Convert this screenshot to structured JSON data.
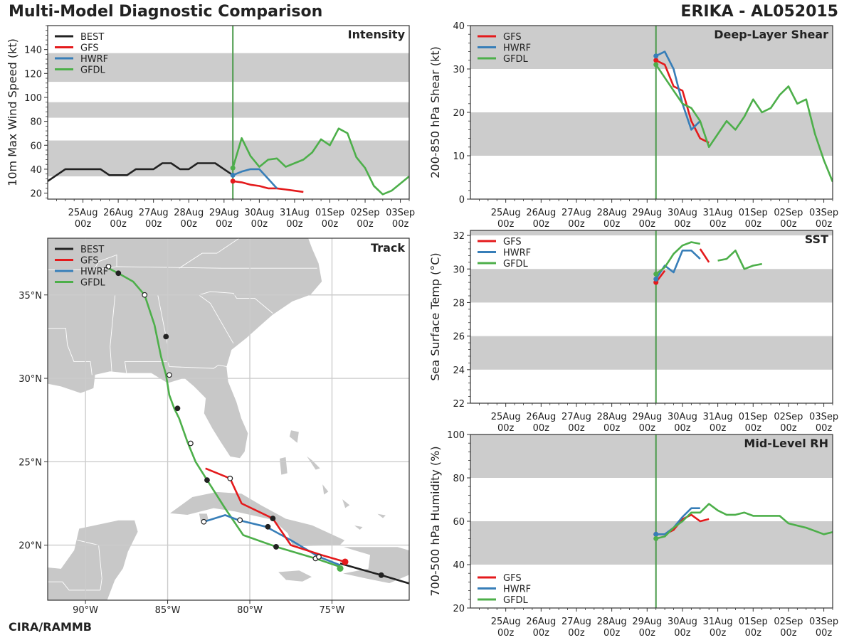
{
  "header": {
    "title": "Multi-Model Diagnostic Comparison",
    "storm": "ERIKA - AL052015",
    "credit": "CIRA/RAMMB"
  },
  "colors": {
    "BEST": "#222222",
    "GFS": "#e41a1c",
    "HWRF": "#377eb8",
    "GFDL": "#4daf4a",
    "band": "#cccccc",
    "init_line": "#4a9a4a",
    "land": "#c8c8c8",
    "grid": "#cccccc"
  },
  "time_axis": {
    "ticks": [
      {
        "day": 1,
        "top": "25Aug",
        "bottom": "00z"
      },
      {
        "day": 2,
        "top": "26Aug",
        "bottom": "00z"
      },
      {
        "day": 3,
        "top": "27Aug",
        "bottom": "00z"
      },
      {
        "day": 4,
        "top": "28Aug",
        "bottom": "00z"
      },
      {
        "day": 5,
        "top": "29Aug",
        "bottom": "00z"
      },
      {
        "day": 6,
        "top": "30Aug",
        "bottom": "00z"
      },
      {
        "day": 7,
        "top": "31Aug",
        "bottom": "00z"
      },
      {
        "day": 8,
        "top": "01Sep",
        "bottom": "00z"
      },
      {
        "day": 9,
        "top": "02Sep",
        "bottom": "00z"
      },
      {
        "day": 10,
        "top": "03Sep",
        "bottom": "00z"
      }
    ],
    "range": [
      0,
      10.25
    ],
    "init_day": 5.25
  },
  "chart_data": [
    {
      "id": "intensity",
      "type": "line",
      "title": "Intensity",
      "ylabel": "10m Max Wind Speed (kt)",
      "ylim": [
        15,
        160
      ],
      "yticks": [
        20,
        40,
        60,
        80,
        100,
        120,
        140
      ],
      "bands": [
        [
          34,
          64
        ],
        [
          83,
          96
        ],
        [
          113,
          137
        ]
      ],
      "legend": {
        "position": "top-left",
        "entries": [
          "BEST",
          "GFS",
          "HWRF",
          "GFDL"
        ]
      },
      "series": [
        {
          "name": "BEST",
          "x": [
            0,
            0.5,
            0.75,
            1.0,
            1.25,
            1.5,
            1.75,
            2.0,
            2.25,
            2.5,
            2.75,
            3.0,
            3.25,
            3.5,
            3.75,
            4.0,
            4.25,
            4.5,
            4.75,
            5.0,
            5.25
          ],
          "y": [
            30,
            40,
            40,
            40,
            40,
            40,
            35,
            35,
            35,
            40,
            40,
            40,
            45,
            45,
            40,
            40,
            45,
            45,
            45,
            40,
            35
          ]
        },
        {
          "name": "GFS",
          "x": [
            5.25,
            5.5,
            5.75,
            6.0,
            6.25,
            6.5,
            6.75,
            7.0,
            7.25
          ],
          "y": [
            30,
            29,
            27,
            26,
            24,
            24,
            23,
            22,
            21
          ]
        },
        {
          "name": "HWRF",
          "x": [
            5.25,
            5.5,
            5.75,
            6.0,
            6.25,
            6.5
          ],
          "y": [
            35,
            38,
            40,
            40,
            32,
            24
          ]
        },
        {
          "name": "GFDL",
          "x": [
            5.25,
            5.5,
            5.75,
            6.0,
            6.25,
            6.5,
            6.75,
            7.0,
            7.25,
            7.5,
            7.75,
            8.0,
            8.25,
            8.5,
            8.75,
            9.0,
            9.25,
            9.5,
            9.75,
            10.0,
            10.25
          ],
          "y": [
            41,
            66,
            51,
            42,
            48,
            49,
            42,
            45,
            48,
            54,
            65,
            60,
            74,
            70,
            50,
            41,
            26,
            19,
            22,
            28,
            34
          ]
        }
      ]
    },
    {
      "id": "shear",
      "type": "line",
      "title": "Deep-Layer Shear",
      "ylabel": "200-850 hPa Shear (kt)",
      "ylim": [
        0,
        40
      ],
      "yticks": [
        0,
        10,
        20,
        30,
        40
      ],
      "bands": [
        [
          10,
          20
        ],
        [
          30,
          40
        ]
      ],
      "legend": {
        "position": "top-left",
        "entries": [
          "GFS",
          "HWRF",
          "GFDL"
        ]
      },
      "series": [
        {
          "name": "GFS",
          "x": [
            5.25,
            5.5,
            5.75,
            6.0,
            6.25,
            6.5,
            6.75
          ],
          "y": [
            32,
            31,
            26,
            25,
            18,
            14,
            13
          ]
        },
        {
          "name": "HWRF",
          "x": [
            5.25,
            5.5,
            5.75,
            6.0,
            6.25,
            6.5
          ],
          "y": [
            33,
            34,
            30,
            22,
            16,
            18
          ]
        },
        {
          "name": "GFDL",
          "x": [
            5.25,
            5.5,
            5.75,
            6.0,
            6.25,
            6.5,
            6.75,
            7.0,
            7.25,
            7.5,
            7.75,
            8.0,
            8.25,
            8.5,
            8.75,
            9.0,
            9.25,
            9.5,
            9.75,
            10.0,
            10.25
          ],
          "y": [
            31,
            28,
            25,
            22,
            21,
            18,
            12,
            15,
            18,
            16,
            19,
            23,
            20,
            21,
            24,
            26,
            22,
            23,
            15,
            9,
            4
          ]
        }
      ]
    },
    {
      "id": "sst",
      "type": "line",
      "title": "SST",
      "ylabel": "Sea Surface Temp (°C)",
      "ylim": [
        22,
        32.3
      ],
      "yticks": [
        22,
        24,
        26,
        28,
        30,
        32
      ],
      "bands": [
        [
          24,
          26
        ],
        [
          28,
          30
        ],
        [
          32,
          33
        ]
      ],
      "legend": {
        "position": "top-left",
        "entries": [
          "GFS",
          "HWRF",
          "GFDL"
        ]
      },
      "series": [
        {
          "name": "GFS",
          "segments": [
            {
              "x": [
                5.25,
                5.5
              ],
              "y": [
                29.2,
                29.9
              ]
            },
            {
              "x": [
                6.5,
                6.75
              ],
              "y": [
                31.2,
                30.4
              ]
            }
          ]
        },
        {
          "name": "HWRF",
          "segments": [
            {
              "x": [
                5.25,
                5.5,
                5.75,
                6.0,
                6.25,
                6.5
              ],
              "y": [
                29.4,
                30.2,
                29.8,
                31.1,
                31.1,
                30.6
              ]
            }
          ]
        },
        {
          "name": "GFDL",
          "segments": [
            {
              "x": [
                5.25,
                5.5,
                5.75,
                6.0,
                6.25,
                6.5
              ],
              "y": [
                29.7,
                30.1,
                30.9,
                31.4,
                31.6,
                31.5
              ]
            },
            {
              "x": [
                7.0,
                7.25,
                7.5,
                7.75,
                8.0,
                8.25
              ],
              "y": [
                30.5,
                30.6,
                31.1,
                30.0,
                30.2,
                30.3
              ]
            }
          ]
        }
      ]
    },
    {
      "id": "rh",
      "type": "line",
      "title": "Mid-Level RH",
      "ylabel": "700-500 hPa Humidity (%)",
      "ylim": [
        20,
        100
      ],
      "yticks": [
        20,
        40,
        60,
        80,
        100
      ],
      "bands": [
        [
          40,
          60
        ],
        [
          80,
          100
        ]
      ],
      "legend": {
        "position": "bottom-left",
        "entries": [
          "GFS",
          "HWRF",
          "GFDL"
        ]
      },
      "series": [
        {
          "name": "GFS",
          "x": [
            5.25,
            5.5,
            5.75,
            6.0,
            6.25,
            6.5,
            6.75
          ],
          "y": [
            54,
            54,
            56,
            61,
            63,
            60,
            61
          ]
        },
        {
          "name": "HWRF",
          "x": [
            5.25,
            5.5,
            5.75,
            6.0,
            6.25,
            6.5
          ],
          "y": [
            54,
            54,
            57,
            62,
            66,
            66
          ]
        },
        {
          "name": "GFDL",
          "x": [
            5.25,
            5.5,
            5.75,
            6.0,
            6.25,
            6.5,
            6.75,
            7.0,
            7.25,
            7.5,
            7.75,
            8.0,
            8.25,
            8.5,
            8.75,
            9.0,
            9.25,
            9.5,
            9.75,
            10.0,
            10.25
          ],
          "y": [
            52,
            53,
            57,
            60,
            64,
            64,
            68,
            65,
            63,
            63,
            64,
            62.5,
            62.5,
            62.5,
            62.5,
            59,
            58,
            57,
            55.5,
            54,
            55
          ]
        }
      ]
    },
    {
      "id": "track",
      "type": "scatter",
      "title": "Track",
      "xlim": [
        -92.3,
        -70.3
      ],
      "ylim": [
        16.7,
        38.4
      ],
      "xticks": [
        {
          "v": -90,
          "label": "90°W"
        },
        {
          "v": -85,
          "label": "85°W"
        },
        {
          "v": -80,
          "label": "80°W"
        },
        {
          "v": -75,
          "label": "75°W"
        }
      ],
      "yticks": [
        {
          "v": 20,
          "label": "20°N"
        },
        {
          "v": 25,
          "label": "25°N"
        },
        {
          "v": 30,
          "label": "30°N"
        },
        {
          "v": 35,
          "label": "35°N"
        }
      ],
      "legend": {
        "position": "top-left",
        "entries": [
          "BEST",
          "GFS",
          "HWRF",
          "GFDL"
        ]
      },
      "series": [
        {
          "name": "BEST",
          "lon": [
            -70.3,
            -72.0,
            -74.5
          ],
          "lat": [
            17.7,
            18.2,
            18.9
          ],
          "markers": [
            {
              "lon": -72.0,
              "lat": 18.2,
              "fill": "dark"
            }
          ]
        },
        {
          "name": "GFS",
          "lon": [
            -74.2,
            -75.6,
            -77.5,
            -78.6,
            -80.5,
            -81.2,
            -82.7
          ],
          "lat": [
            19.0,
            19.4,
            20.0,
            21.6,
            22.5,
            24.0,
            24.6
          ],
          "markers": [
            {
              "lon": -74.2,
              "lat": 19.0,
              "fill": "color"
            },
            {
              "lon": -78.6,
              "lat": 21.6,
              "fill": "dark"
            },
            {
              "lon": -81.2,
              "lat": 24.0,
              "fill": "white"
            }
          ]
        },
        {
          "name": "HWRF",
          "lon": [
            -74.5,
            -75.8,
            -77.5,
            -79.0,
            -80.7,
            -81.5,
            -82.8
          ],
          "lat": [
            18.8,
            19.3,
            20.3,
            21.1,
            21.5,
            21.8,
            21.4
          ],
          "markers": [
            {
              "lon": -75.8,
              "lat": 19.3,
              "fill": "white"
            },
            {
              "lon": -78.9,
              "lat": 21.1,
              "fill": "dark"
            },
            {
              "lon": -80.6,
              "lat": 21.5,
              "fill": "white"
            },
            {
              "lon": -82.8,
              "lat": 21.4,
              "fill": "white"
            }
          ]
        },
        {
          "name": "GFDL",
          "lon": [
            -74.5,
            -76.0,
            -78.4,
            -80.4,
            -81.5,
            -82.6,
            -83.3,
            -83.8,
            -84.3,
            -84.6,
            -84.9,
            -85.1,
            -85.4,
            -85.8,
            -86.4,
            -87.1,
            -88.0,
            -88.6
          ],
          "lat": [
            18.7,
            19.2,
            19.9,
            20.6,
            22.2,
            23.9,
            25.0,
            26.2,
            27.6,
            28.2,
            29.0,
            30.2,
            31.3,
            33.2,
            35.0,
            35.8,
            36.3,
            36.6
          ],
          "markers": [
            {
              "lon": -74.5,
              "lat": 18.6,
              "fill": "color"
            },
            {
              "lon": -76.0,
              "lat": 19.2,
              "fill": "white"
            },
            {
              "lon": -78.4,
              "lat": 19.9,
              "fill": "dark"
            },
            {
              "lon": -82.6,
              "lat": 23.9,
              "fill": "dark"
            },
            {
              "lon": -83.6,
              "lat": 26.1,
              "fill": "white"
            },
            {
              "lon": -84.4,
              "lat": 28.2,
              "fill": "dark"
            },
            {
              "lon": -84.9,
              "lat": 30.2,
              "fill": "white"
            },
            {
              "lon": -85.1,
              "lat": 32.5,
              "fill": "dark"
            },
            {
              "lon": -86.4,
              "lat": 35.0,
              "fill": "white"
            },
            {
              "lon": -88.0,
              "lat": 36.3,
              "fill": "dark"
            },
            {
              "lon": -88.6,
              "lat": 36.7,
              "fill": "white"
            }
          ]
        }
      ]
    }
  ]
}
